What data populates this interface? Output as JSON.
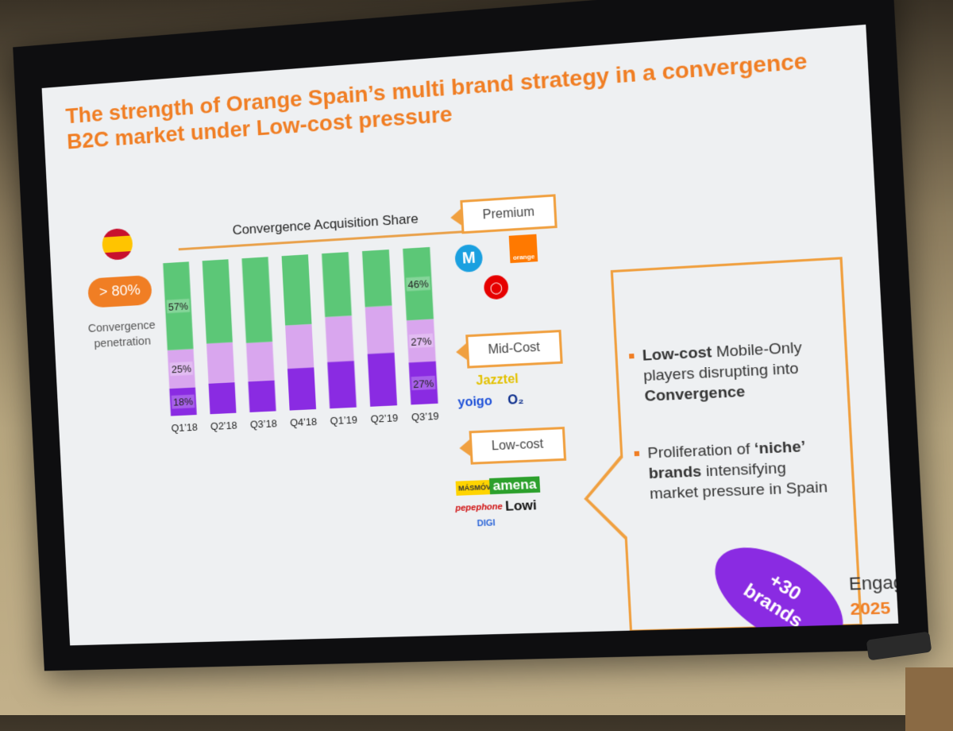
{
  "slide": {
    "title": "The strength of Orange Spain’s multi brand strategy in a convergence B2C market under Low-cost pressure",
    "penetration_value": "> 80%",
    "penetration_label": "Convergence penetration",
    "segments": {
      "premium": "Premium",
      "midcost": "Mid-Cost",
      "lowcost": "Low-cost"
    },
    "logos": {
      "movistar": "M",
      "orange": "orange",
      "vodafone": "◯",
      "jazztel": "Jazztel",
      "yoigo": "yoigo",
      "o2": "O₂",
      "masmovil": "MÁSMÓV L",
      "amena": "amena",
      "pepephone": "pepephone",
      "lowi": "Lowi",
      "digi": "DIGI"
    },
    "callout": {
      "b1_bold": "Low-cost",
      "b1_text": " Mobile-Only players disrupting into ",
      "b1_bold2": "Convergence",
      "b2_text": "Proliferation of ",
      "b2_bold": "‘niche’ brands",
      "b2_text2": " intensifying market pressure in Spain"
    },
    "brands_badge": "+30 brands",
    "event_name": "Engag",
    "event_year": "2025"
  },
  "chart_data": {
    "type": "bar",
    "stacked": true,
    "title": "Convergence Acquisition Share",
    "categories": [
      "Q1’18",
      "Q2’18",
      "Q3’18",
      "Q4’18",
      "Q1’19",
      "Q2’19",
      "Q3’19"
    ],
    "series": [
      {
        "name": "Low-cost",
        "color": "#8a2be2",
        "values": [
          18,
          20,
          20,
          27,
          30,
          34,
          27
        ]
      },
      {
        "name": "Mid-Cost",
        "color": "#d9a6ee",
        "values": [
          25,
          26,
          25,
          28,
          29,
          30,
          27
        ]
      },
      {
        "name": "Premium",
        "color": "#5cc777",
        "values": [
          57,
          54,
          55,
          45,
          41,
          36,
          46
        ]
      }
    ],
    "data_labels": [
      {
        "series": "Low-cost",
        "category": "Q1’18",
        "text": "18%"
      },
      {
        "series": "Mid-Cost",
        "category": "Q1’18",
        "text": "25%"
      },
      {
        "series": "Premium",
        "category": "Q1’18",
        "text": "57%"
      },
      {
        "series": "Low-cost",
        "category": "Q3’19",
        "text": "27%"
      },
      {
        "series": "Mid-Cost",
        "category": "Q3’19",
        "text": "27%"
      },
      {
        "series": "Premium",
        "category": "Q3’19",
        "text": "46%"
      }
    ],
    "ylim": [
      0,
      100
    ],
    "grid": false
  }
}
